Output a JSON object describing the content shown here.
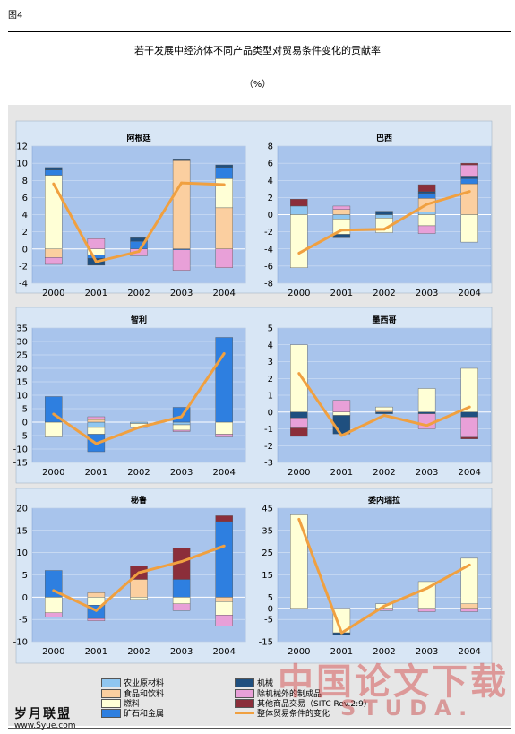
{
  "figure_label": "图4",
  "title": "若干发展中经济体不同产品类型对贸易条件变化的贡献率",
  "unit": "（%）",
  "colors": {
    "plot_bg": "#A8C4EC",
    "agri": "#8FC6F0",
    "food": "#FBCFA0",
    "fuel": "#FFFFD6",
    "ore": "#2E7FE0",
    "machinery": "#1F4F7F",
    "mfg": "#E8A0D8",
    "other": "#8B2E3A",
    "total_line": "#F0A040"
  },
  "legend": [
    {
      "key": "agri",
      "label": "农业原材料"
    },
    {
      "key": "food",
      "label": "食品和饮料"
    },
    {
      "key": "fuel",
      "label": "燃料"
    },
    {
      "key": "ore",
      "label": "矿石和金属"
    },
    {
      "key": "machinery",
      "label": "机械"
    },
    {
      "key": "mfg",
      "label": "除机械外的制成品"
    },
    {
      "key": "other",
      "label": "其他商品交易（SITC Rev.2:9）"
    },
    {
      "key": "total",
      "label": "整体贸易条件的变化"
    }
  ],
  "watermark": {
    "left": "岁月联盟",
    "left_sub": "www.Syue.com",
    "right": "中国论文下载",
    "right_sub": "STUDA."
  },
  "chart_data": [
    {
      "type": "bar",
      "stacked": true,
      "title": "阿根廷",
      "categories": [
        "2000",
        "2001",
        "2002",
        "2003",
        "2004"
      ],
      "ylim": [
        -4,
        12
      ],
      "yticks": [
        -4,
        -2,
        0,
        2,
        4,
        6,
        8,
        10,
        12
      ],
      "series": [
        {
          "key": "agri",
          "values": [
            0,
            0,
            0,
            0,
            0
          ]
        },
        {
          "key": "food",
          "values": [
            -1.0,
            0,
            0,
            10.3,
            4.8
          ]
        },
        {
          "key": "fuel",
          "values": [
            8.6,
            -0.7,
            0,
            0,
            3.4
          ]
        },
        {
          "key": "ore",
          "values": [
            0.6,
            -0.4,
            0.9,
            -0.1,
            1.3
          ]
        },
        {
          "key": "machinery",
          "values": [
            0.3,
            -0.8,
            0.4,
            0.2,
            0.3
          ]
        },
        {
          "key": "mfg",
          "values": [
            -0.8,
            1.2,
            -0.8,
            -2.4,
            -2.2
          ]
        },
        {
          "key": "other",
          "values": [
            0,
            0,
            0,
            0,
            0
          ]
        }
      ],
      "total": [
        7.6,
        -1.5,
        -0.3,
        7.7,
        7.5
      ]
    },
    {
      "type": "bar",
      "stacked": true,
      "title": "巴西",
      "categories": [
        "2000",
        "2001",
        "2002",
        "2003",
        "2004"
      ],
      "ylim": [
        -8,
        8
      ],
      "yticks": [
        -8,
        -6,
        -4,
        -2,
        0,
        2,
        4,
        6,
        8
      ],
      "series": [
        {
          "key": "agri",
          "values": [
            1.0,
            -0.5,
            -0.4,
            0.3,
            0
          ]
        },
        {
          "key": "food",
          "values": [
            0,
            0.6,
            0,
            1.6,
            3.6
          ]
        },
        {
          "key": "fuel",
          "values": [
            -6.2,
            -1.8,
            -1.7,
            -1.3,
            -3.2
          ]
        },
        {
          "key": "ore",
          "values": [
            0,
            0,
            0,
            0.6,
            0.6
          ]
        },
        {
          "key": "machinery",
          "values": [
            0,
            -0.4,
            0.4,
            0.2,
            0.3
          ]
        },
        {
          "key": "mfg",
          "values": [
            0,
            0.4,
            0,
            -0.9,
            1.3
          ]
        },
        {
          "key": "other",
          "values": [
            0.8,
            0,
            0,
            0.8,
            0.2
          ]
        }
      ],
      "total": [
        -4.5,
        -1.8,
        -1.7,
        1.2,
        2.7
      ]
    },
    {
      "type": "bar",
      "stacked": true,
      "title": "智利",
      "categories": [
        "2000",
        "2001",
        "2002",
        "2003",
        "2004"
      ],
      "ylim": [
        -15,
        35
      ],
      "yticks": [
        -15,
        -10,
        -5,
        0,
        5,
        10,
        15,
        20,
        25,
        30,
        35
      ],
      "series": [
        {
          "key": "agri",
          "values": [
            0,
            -2.0,
            -0.5,
            -1.0,
            0
          ]
        },
        {
          "key": "food",
          "values": [
            0,
            1.0,
            0,
            0,
            0
          ]
        },
        {
          "key": "fuel",
          "values": [
            -5.5,
            -2.5,
            -1.5,
            -2.0,
            -4.5
          ]
        },
        {
          "key": "ore",
          "values": [
            9.5,
            -6.5,
            0,
            5.5,
            31.5
          ]
        },
        {
          "key": "machinery",
          "values": [
            0,
            0,
            0,
            0,
            0
          ]
        },
        {
          "key": "mfg",
          "values": [
            0,
            1.0,
            0,
            -0.5,
            -1.0
          ]
        },
        {
          "key": "other",
          "values": [
            0,
            0,
            0,
            0,
            0
          ]
        }
      ],
      "total": [
        3,
        -8,
        -2,
        2,
        25.5
      ]
    },
    {
      "type": "bar",
      "stacked": true,
      "title": "墨西哥",
      "categories": [
        "2000",
        "2001",
        "2002",
        "2003",
        "2004"
      ],
      "ylim": [
        -3,
        5
      ],
      "yticks": [
        -3,
        -2,
        -1,
        0,
        1,
        2,
        3,
        4,
        5
      ],
      "series": [
        {
          "key": "agri",
          "values": [
            0,
            0,
            0,
            0,
            0
          ]
        },
        {
          "key": "food",
          "values": [
            0,
            0,
            0.1,
            0,
            0
          ]
        },
        {
          "key": "fuel",
          "values": [
            4.0,
            -0.2,
            0.2,
            1.4,
            2.6
          ]
        },
        {
          "key": "ore",
          "values": [
            0,
            0,
            0,
            0,
            0
          ]
        },
        {
          "key": "machinery",
          "values": [
            -0.35,
            -1.1,
            -0.1,
            -0.1,
            -0.3
          ]
        },
        {
          "key": "mfg",
          "values": [
            -0.6,
            0.7,
            0,
            -0.9,
            -1.2
          ]
        },
        {
          "key": "other",
          "values": [
            -0.5,
            0,
            0,
            0,
            -0.1
          ]
        }
      ],
      "total": [
        2.3,
        -1.4,
        -0.2,
        -0.8,
        0.3
      ]
    },
    {
      "type": "bar",
      "stacked": true,
      "title": "秘鲁",
      "categories": [
        "2000",
        "2001",
        "2002",
        "2003",
        "2004"
      ],
      "ylim": [
        -10,
        20
      ],
      "yticks": [
        -10,
        -5,
        0,
        5,
        10,
        15,
        20
      ],
      "series": [
        {
          "key": "agri",
          "values": [
            0,
            0,
            0,
            0,
            0
          ]
        },
        {
          "key": "food",
          "values": [
            0,
            1.0,
            4.0,
            0,
            -1.0
          ]
        },
        {
          "key": "fuel",
          "values": [
            -3.5,
            -1.8,
            -0.5,
            -1.5,
            -3.0
          ]
        },
        {
          "key": "ore",
          "values": [
            6.0,
            -3.0,
            0,
            4.0,
            17.0
          ]
        },
        {
          "key": "machinery",
          "values": [
            0,
            0,
            0,
            0,
            0
          ]
        },
        {
          "key": "mfg",
          "values": [
            -1.0,
            -0.5,
            0,
            -1.5,
            -2.5
          ]
        },
        {
          "key": "other",
          "values": [
            0,
            0,
            3.0,
            7.0,
            1.3
          ]
        }
      ],
      "total": [
        1.5,
        -3,
        5.5,
        8,
        11.5
      ]
    },
    {
      "type": "bar",
      "stacked": true,
      "title": "委内瑞拉",
      "categories": [
        "2000",
        "2001",
        "2002",
        "2003",
        "2004"
      ],
      "ylim": [
        -15,
        45
      ],
      "yticks": [
        -15,
        -5,
        0,
        5,
        15,
        25,
        35,
        45
      ],
      "series": [
        {
          "key": "agri",
          "values": [
            0,
            0,
            0,
            0,
            0
          ]
        },
        {
          "key": "food",
          "values": [
            0,
            0,
            0,
            0,
            2
          ]
        },
        {
          "key": "fuel",
          "values": [
            42,
            -11,
            2,
            12,
            20.5
          ]
        },
        {
          "key": "ore",
          "values": [
            0,
            0,
            0,
            0,
            0
          ]
        },
        {
          "key": "machinery",
          "values": [
            0,
            -1,
            0,
            0,
            0
          ]
        },
        {
          "key": "mfg",
          "values": [
            0,
            0,
            -1,
            -1.5,
            -1.5
          ]
        },
        {
          "key": "other",
          "values": [
            0,
            0,
            0,
            0,
            0
          ]
        }
      ],
      "total": [
        40,
        -11,
        1,
        9,
        19.5
      ]
    }
  ]
}
